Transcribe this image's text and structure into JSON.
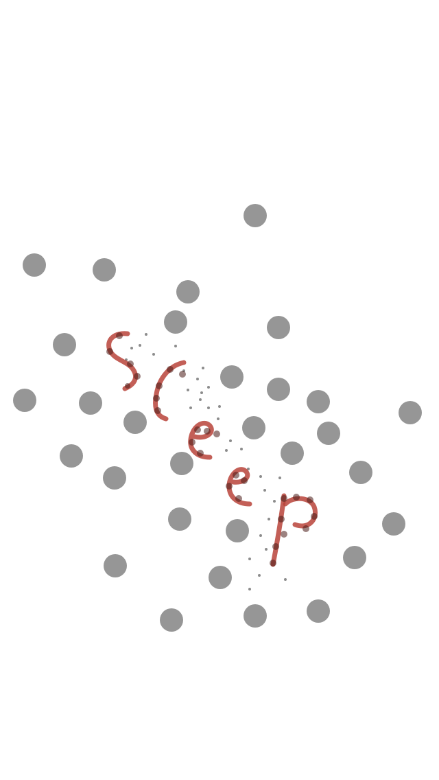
{
  "word": {
    "letters": [
      "S",
      "c",
      "e",
      "e",
      "p"
    ]
  },
  "colors": {
    "background": "#ffffff",
    "dot": "#969696",
    "small_dot": "#8c8c8c",
    "stroke": "#b9433a",
    "stroke_dark": "#4a1b18"
  }
}
